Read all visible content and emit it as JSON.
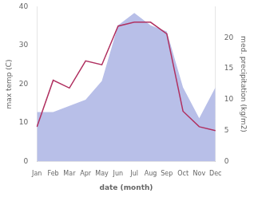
{
  "chart_data": {
    "type": "line",
    "categories": [
      "Jan",
      "Feb",
      "Mar",
      "Apr",
      "May",
      "Jun",
      "Jul",
      "Aug",
      "Sep",
      "Oct",
      "Nov",
      "Dec"
    ],
    "xlabel": "date (month)",
    "ylabel": "max temp (C)",
    "y2label": "med. precipitation (kg/m2)",
    "ylim": [
      0,
      40
    ],
    "yticks": [
      0,
      10,
      20,
      30,
      40
    ],
    "y2lim": [
      0,
      25
    ],
    "y2ticks": [
      0,
      5,
      10,
      15,
      20
    ],
    "grid": false,
    "series": [
      {
        "type": "area",
        "color": "#b8bfe8",
        "axis": "y2",
        "values": [
          8,
          8,
          9,
          10,
          13,
          22,
          24,
          22,
          21,
          12,
          7,
          12
        ]
      },
      {
        "type": "line",
        "color": "#b03060",
        "values": [
          9,
          21,
          19,
          26,
          25,
          35,
          36,
          36,
          33,
          13,
          9,
          8
        ]
      }
    ]
  }
}
